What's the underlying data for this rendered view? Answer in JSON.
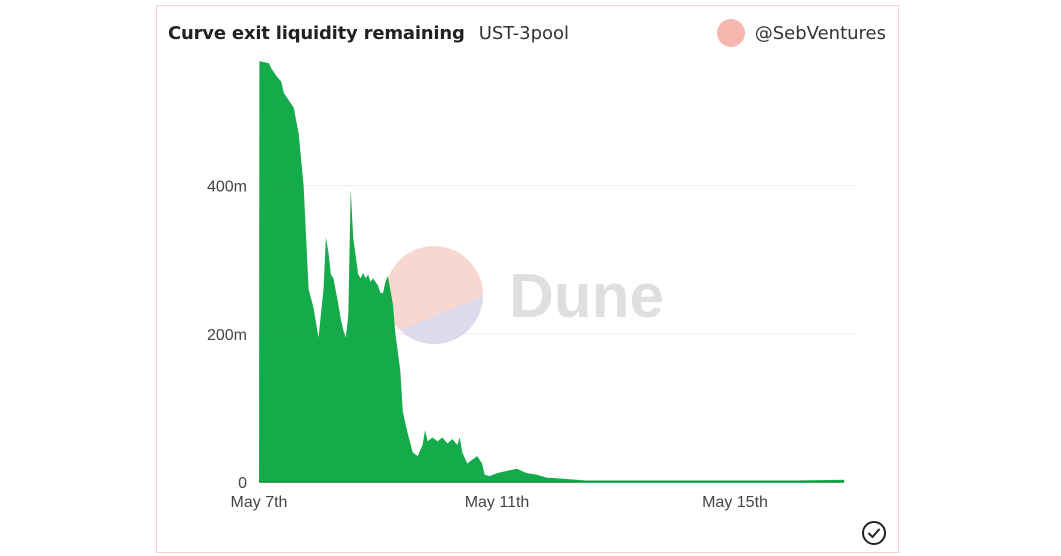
{
  "header": {
    "title": "Curve exit liquidity remaining",
    "subtitle": "UST-3pool",
    "author": "@SebVentures"
  },
  "watermark": {
    "text": "Dune"
  },
  "colors": {
    "area": "#0aa640",
    "grid": "#ececec",
    "avatar": "#f6b7ae",
    "border": "#f3d3cc"
  },
  "icons": {
    "status": "checkmark-circle-icon"
  },
  "chart_data": {
    "type": "area",
    "title": "Curve exit liquidity remaining",
    "subtitle": "UST-3pool",
    "xlabel": "",
    "ylabel": "",
    "x_range": [
      "2022-05-07",
      "2022-05-17T00:00"
    ],
    "ylim": [
      0,
      560
    ],
    "y_unit": "m",
    "y_ticks": [
      {
        "value": 0,
        "label": "0"
      },
      {
        "value": 200,
        "label": "200m"
      },
      {
        "value": 400,
        "label": "400m"
      }
    ],
    "x_ticks": [
      {
        "value": "2022-05-07",
        "label": "May 7th"
      },
      {
        "value": "2022-05-11",
        "label": "May 11th"
      },
      {
        "value": "2022-05-15",
        "label": "May 15th"
      }
    ],
    "grid": true,
    "series": [
      {
        "name": "",
        "points": [
          [
            "2022-05-07T00:00",
            0
          ],
          [
            "2022-05-07T00:10",
            568
          ],
          [
            "2022-05-07T04:00",
            565
          ],
          [
            "2022-05-07T05:00",
            558
          ],
          [
            "2022-05-07T06:00",
            553
          ],
          [
            "2022-05-07T07:00",
            548
          ],
          [
            "2022-05-07T09:00",
            540
          ],
          [
            "2022-05-07T10:00",
            525
          ],
          [
            "2022-05-07T11:00",
            520
          ],
          [
            "2022-05-07T12:00",
            515
          ],
          [
            "2022-05-07T14:00",
            505
          ],
          [
            "2022-05-07T16:00",
            470
          ],
          [
            "2022-05-07T18:00",
            400
          ],
          [
            "2022-05-07T20:00",
            260
          ],
          [
            "2022-05-07T22:00",
            235
          ],
          [
            "2022-05-08T00:00",
            195
          ],
          [
            "2022-05-08T02:00",
            260
          ],
          [
            "2022-05-08T03:00",
            330
          ],
          [
            "2022-05-08T04:00",
            310
          ],
          [
            "2022-05-08T05:00",
            280
          ],
          [
            "2022-05-08T06:00",
            275
          ],
          [
            "2022-05-08T08:00",
            240
          ],
          [
            "2022-05-08T09:00",
            220
          ],
          [
            "2022-05-08T10:00",
            205
          ],
          [
            "2022-05-08T11:00",
            195
          ],
          [
            "2022-05-08T12:00",
            225
          ],
          [
            "2022-05-08T13:00",
            395
          ],
          [
            "2022-05-08T14:00",
            330
          ],
          [
            "2022-05-08T16:00",
            280
          ],
          [
            "2022-05-08T17:00",
            275
          ],
          [
            "2022-05-08T18:00",
            282
          ],
          [
            "2022-05-08T19:00",
            275
          ],
          [
            "2022-05-08T20:00",
            280
          ],
          [
            "2022-05-08T21:00",
            270
          ],
          [
            "2022-05-08T22:00",
            275
          ],
          [
            "2022-05-09T00:00",
            265
          ],
          [
            "2022-05-09T01:00",
            255
          ],
          [
            "2022-05-09T02:00",
            255
          ],
          [
            "2022-05-09T03:00",
            270
          ],
          [
            "2022-05-09T04:00",
            278
          ],
          [
            "2022-05-09T06:00",
            240
          ],
          [
            "2022-05-09T07:00",
            200
          ],
          [
            "2022-05-09T09:00",
            150
          ],
          [
            "2022-05-09T10:00",
            95
          ],
          [
            "2022-05-09T12:00",
            65
          ],
          [
            "2022-05-09T14:00",
            40
          ],
          [
            "2022-05-09T16:00",
            35
          ],
          [
            "2022-05-09T18:00",
            50
          ],
          [
            "2022-05-09T19:00",
            70
          ],
          [
            "2022-05-09T20:00",
            55
          ],
          [
            "2022-05-09T22:00",
            60
          ],
          [
            "2022-05-10T00:00",
            55
          ],
          [
            "2022-05-10T02:00",
            60
          ],
          [
            "2022-05-10T04:00",
            52
          ],
          [
            "2022-05-10T06:00",
            58
          ],
          [
            "2022-05-10T08:00",
            50
          ],
          [
            "2022-05-10T09:00",
            60
          ],
          [
            "2022-05-10T10:00",
            40
          ],
          [
            "2022-05-10T12:00",
            25
          ],
          [
            "2022-05-10T14:00",
            30
          ],
          [
            "2022-05-10T16:00",
            35
          ],
          [
            "2022-05-10T18:00",
            25
          ],
          [
            "2022-05-10T19:00",
            10
          ],
          [
            "2022-05-10T21:00",
            8
          ],
          [
            "2022-05-11T00:00",
            12
          ],
          [
            "2022-05-11T04:00",
            15
          ],
          [
            "2022-05-11T08:00",
            18
          ],
          [
            "2022-05-11T12:00",
            12
          ],
          [
            "2022-05-11T16:00",
            10
          ],
          [
            "2022-05-11T20:00",
            6
          ],
          [
            "2022-05-12T00:00",
            5
          ],
          [
            "2022-05-12T04:00",
            4
          ],
          [
            "2022-05-12T12:00",
            2
          ],
          [
            "2022-05-13T00:00",
            2
          ],
          [
            "2022-05-14T00:00",
            2
          ],
          [
            "2022-05-15T00:00",
            2
          ],
          [
            "2022-05-16T00:00",
            2
          ],
          [
            "2022-05-16T20:00",
            3
          ]
        ]
      }
    ]
  }
}
